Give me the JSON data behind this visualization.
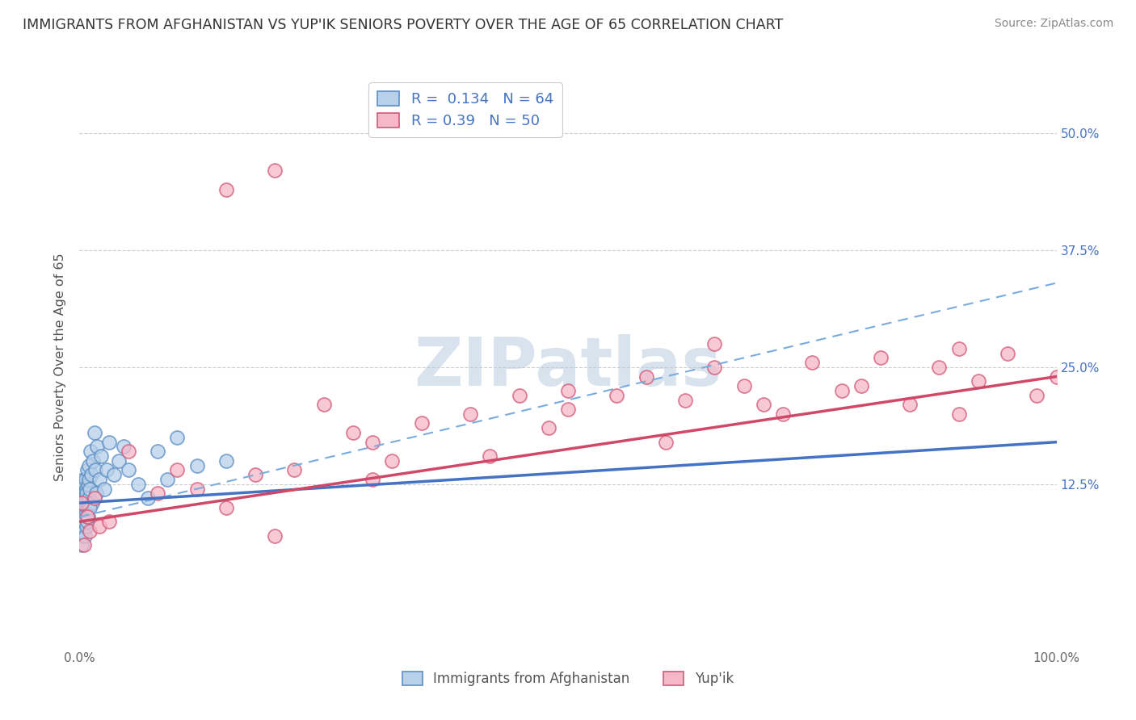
{
  "title": "IMMIGRANTS FROM AFGHANISTAN VS YUP'IK SENIORS POVERTY OVER THE AGE OF 65 CORRELATION CHART",
  "source": "Source: ZipAtlas.com",
  "ylabel": "Seniors Poverty Over the Age of 65",
  "legend_labels": [
    "Immigrants from Afghanistan",
    "Yup'ik"
  ],
  "legend_R": [
    0.134,
    0.39
  ],
  "legend_N": [
    64,
    50
  ],
  "blue_fill": "#b8d0ea",
  "pink_fill": "#f5b8c8",
  "blue_edge": "#5b8ec4",
  "pink_edge": "#d45878",
  "blue_line_color": "#4472c4",
  "pink_line_color": "#d04868",
  "dashed_line_color": "#7aabdf",
  "grid_color": "#c8ccd4",
  "title_fontsize": 12.5,
  "watermark": "ZIPatlas",
  "watermark_color_zip": "#b8cce0",
  "watermark_color_atlas": "#90b8d0",
  "bg_color": "#ffffff",
  "blue_x": [
    0.05,
    0.08,
    0.1,
    0.12,
    0.15,
    0.18,
    0.2,
    0.22,
    0.25,
    0.28,
    0.3,
    0.32,
    0.35,
    0.38,
    0.4,
    0.42,
    0.45,
    0.48,
    0.5,
    0.52,
    0.55,
    0.58,
    0.6,
    0.62,
    0.65,
    0.68,
    0.7,
    0.72,
    0.75,
    0.78,
    0.8,
    0.82,
    0.85,
    0.88,
    0.9,
    0.92,
    0.95,
    0.98,
    1.0,
    1.1,
    1.2,
    1.3,
    1.4,
    1.5,
    1.6,
    1.7,
    1.8,
    2.0,
    2.2,
    2.5,
    2.8,
    3.0,
    3.5,
    4.0,
    4.5,
    5.0,
    6.0,
    7.0,
    8.0,
    9.0,
    10.0,
    12.0,
    15.0,
    1.0
  ],
  "blue_y": [
    10.0,
    8.5,
    9.0,
    7.0,
    11.0,
    6.0,
    8.0,
    10.5,
    9.5,
    7.5,
    11.5,
    8.0,
    10.0,
    12.0,
    9.0,
    13.0,
    11.0,
    8.5,
    10.0,
    12.5,
    9.5,
    7.0,
    11.0,
    13.0,
    10.5,
    8.0,
    12.0,
    9.5,
    11.5,
    14.0,
    10.0,
    8.5,
    12.5,
    10.0,
    9.0,
    13.0,
    11.0,
    14.5,
    12.0,
    16.0,
    13.5,
    10.5,
    15.0,
    18.0,
    14.0,
    11.5,
    16.5,
    13.0,
    15.5,
    12.0,
    14.0,
    17.0,
    13.5,
    15.0,
    16.5,
    14.0,
    12.5,
    11.0,
    16.0,
    13.0,
    17.5,
    14.5,
    15.0,
    10.0
  ],
  "pink_x": [
    0.2,
    0.5,
    0.8,
    1.0,
    1.5,
    2.0,
    3.0,
    5.0,
    8.0,
    10.0,
    12.0,
    15.0,
    18.0,
    20.0,
    22.0,
    25.0,
    28.0,
    30.0,
    32.0,
    35.0,
    40.0,
    42.0,
    45.0,
    48.0,
    50.0,
    55.0,
    58.0,
    60.0,
    62.0,
    65.0,
    68.0,
    70.0,
    72.0,
    75.0,
    78.0,
    80.0,
    82.0,
    85.0,
    88.0,
    90.0,
    92.0,
    95.0,
    98.0,
    100.0,
    15.0,
    20.0,
    30.0,
    50.0,
    65.0,
    90.0
  ],
  "pink_y": [
    10.5,
    6.0,
    9.0,
    7.5,
    11.0,
    8.0,
    8.5,
    16.0,
    11.5,
    14.0,
    12.0,
    10.0,
    13.5,
    7.0,
    14.0,
    21.0,
    18.0,
    17.0,
    15.0,
    19.0,
    20.0,
    15.5,
    22.0,
    18.5,
    20.5,
    22.0,
    24.0,
    17.0,
    21.5,
    25.0,
    23.0,
    21.0,
    20.0,
    25.5,
    22.5,
    23.0,
    26.0,
    21.0,
    25.0,
    27.0,
    23.5,
    26.5,
    22.0,
    24.0,
    44.0,
    46.0,
    13.0,
    22.5,
    27.5,
    20.0
  ],
  "xlim": [
    0,
    100
  ],
  "ylim_min": -5,
  "ylim_max": 55,
  "yticks": [
    12.5,
    25.0,
    37.5,
    50.0
  ],
  "ytick_labels": [
    "12.5%",
    "25.0%",
    "37.5%",
    "50.0%"
  ],
  "blue_trend_x0": 0,
  "blue_trend_y0": 10.5,
  "blue_trend_x1": 100,
  "blue_trend_y1": 17.0,
  "pink_trend_x0": 0,
  "pink_trend_y0": 8.5,
  "pink_trend_x1": 100,
  "pink_trend_y1": 24.0,
  "dashed_x0": 0,
  "dashed_y0": 9.0,
  "dashed_x1": 100,
  "dashed_y1": 34.0
}
